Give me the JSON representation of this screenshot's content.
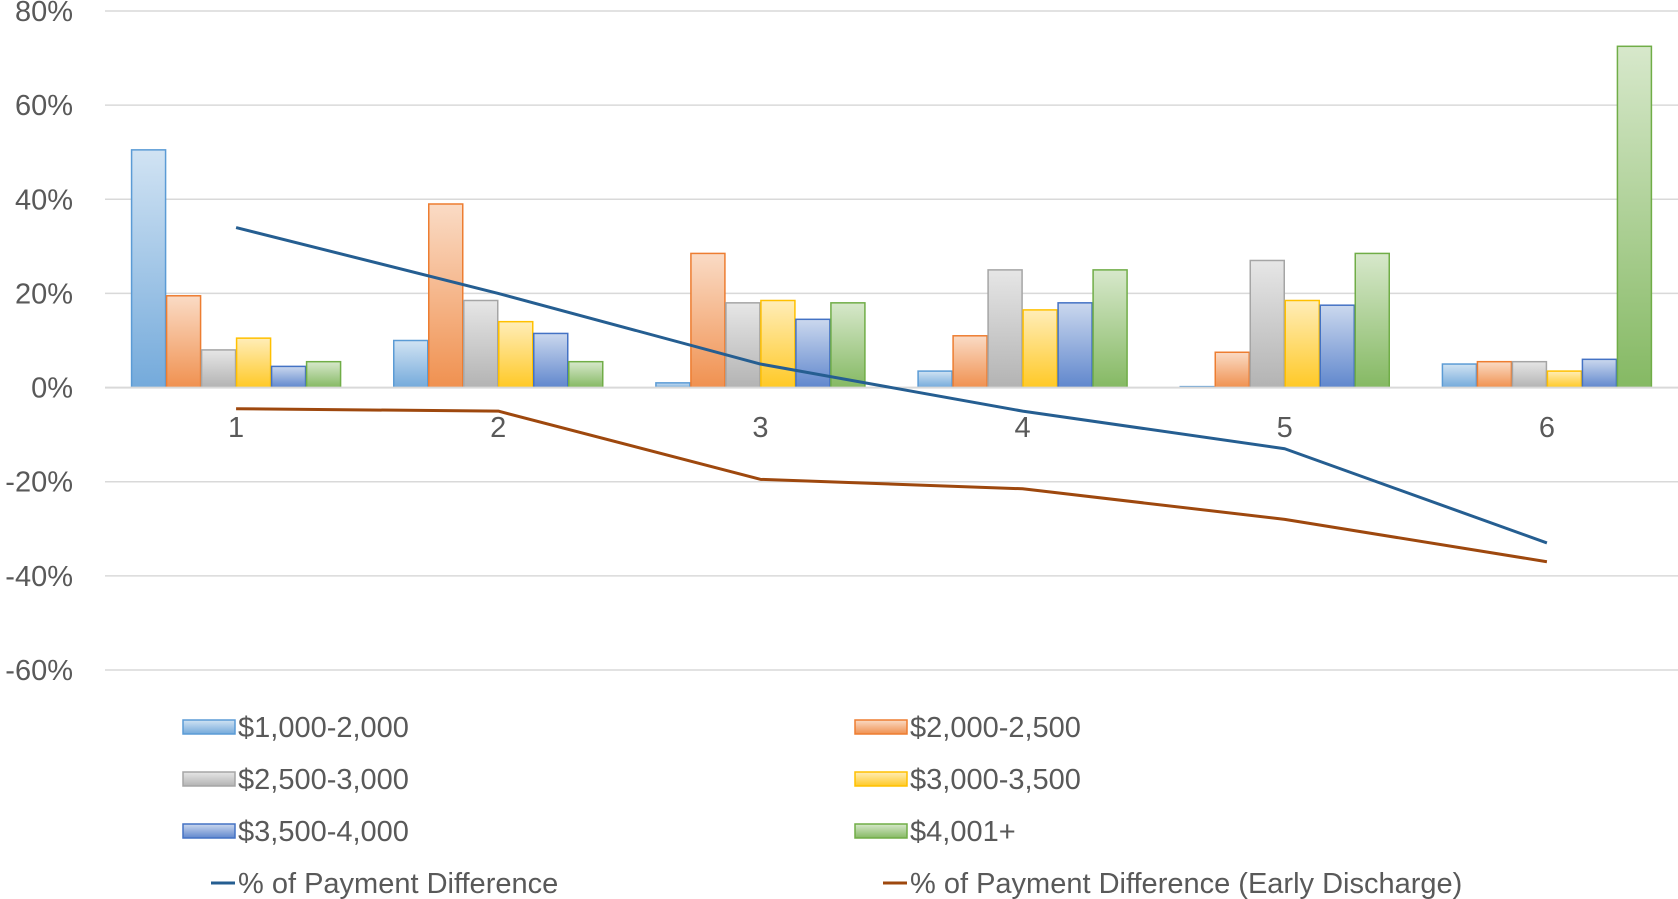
{
  "chart_data": {
    "type": "bar",
    "title": "",
    "xlabel": "",
    "ylabel": "",
    "ylim": [
      -60,
      80
    ],
    "yticks": [
      80,
      60,
      40,
      20,
      0,
      -20,
      -40,
      -60
    ],
    "ytick_labels": [
      "80%",
      "60%",
      "40%",
      "20%",
      "0%",
      "-20%",
      "-40%",
      "-60%"
    ],
    "grid": true,
    "legend_position": "bottom",
    "categories": [
      "1",
      "2",
      "3",
      "4",
      "5",
      "6"
    ],
    "series": [
      {
        "name": "$1,000-2,000",
        "kind": "bar",
        "color": "#5b9bd5",
        "values": [
          50.5,
          10.0,
          1.0,
          3.5,
          0.2,
          5.0
        ]
      },
      {
        "name": "$2,000-2,500",
        "kind": "bar",
        "color": "#ed7d31",
        "values": [
          19.5,
          39.0,
          28.5,
          11.0,
          7.5,
          5.5
        ]
      },
      {
        "name": "$2,500-3,000",
        "kind": "bar",
        "color": "#a5a5a5",
        "values": [
          8.0,
          18.5,
          18.0,
          25.0,
          27.0,
          5.5
        ]
      },
      {
        "name": "$3,000-3,500",
        "kind": "bar",
        "color": "#ffc000",
        "values": [
          10.5,
          14.0,
          18.5,
          16.5,
          18.5,
          3.5
        ]
      },
      {
        "name": "$3,500-4,000",
        "kind": "bar",
        "color": "#4472c4",
        "values": [
          4.5,
          11.5,
          14.5,
          18.0,
          17.5,
          6.0
        ]
      },
      {
        "name": "$4,001+",
        "kind": "bar",
        "color": "#70ad47",
        "values": [
          5.5,
          5.5,
          18.0,
          25.0,
          28.5,
          72.5
        ]
      },
      {
        "name": "% of Payment Difference",
        "kind": "line",
        "color": "#255e91",
        "values": [
          34.0,
          20.0,
          5.0,
          -5.0,
          -13.0,
          -33.0
        ]
      },
      {
        "name": "% of Payment Difference (Early Discharge)",
        "kind": "line",
        "color": "#9e480e",
        "values": [
          -4.5,
          -5.0,
          -19.5,
          -21.5,
          -28.0,
          -37.0
        ]
      }
    ]
  }
}
